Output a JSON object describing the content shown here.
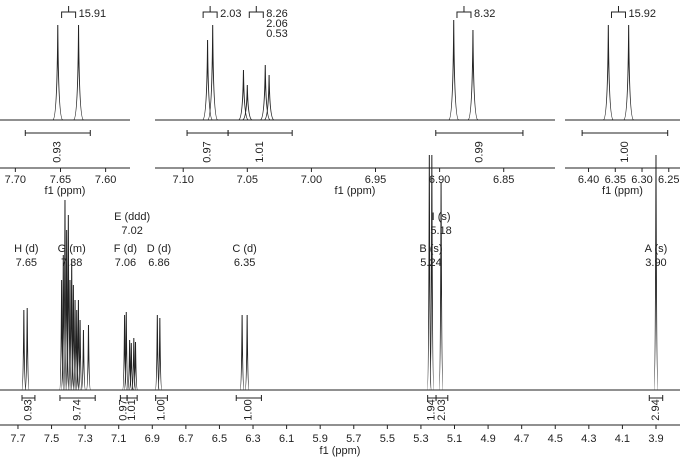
{
  "chart_data": [
    {
      "type": "spectrum",
      "xlabel": "f1 (ppm)",
      "xlim": [
        7.717,
        7.573
      ],
      "xticks": [
        {
          "value": 7.7,
          "label": "7.70"
        },
        7.65,
        {
          "value": 7.6,
          "label": "7.60"
        }
      ],
      "ylim": [
        0,
        100
      ],
      "peaks": {
        "x": [
          7.653,
          7.63
        ],
        "values": [
          95,
          95
        ]
      },
      "integrals": {
        "from": [
          7.689
        ],
        "to": [
          7.617
        ],
        "values": [
          0.93
        ],
        "value_labels": [
          "0.93"
        ]
      },
      "couplings": {
        "x": [
          7.641
        ],
        "values": [
          15.91
        ]
      }
    },
    {
      "type": "spectrum",
      "xlabel": "f1 (ppm)",
      "xlim": [
        7.122,
        6.81
      ],
      "xticks": [
        {
          "value": 7.1,
          "label": "7.10"
        },
        7.05,
        {
          "value": 7.0,
          "label": "7.00"
        },
        6.95,
        {
          "value": 6.9,
          "label": "6.90"
        },
        6.85
      ],
      "ylim": [
        0,
        100
      ],
      "peaks": {
        "x": [
          7.081,
          7.077,
          7.053,
          7.05,
          7.036,
          7.033,
          6.889,
          6.874
        ],
        "values": [
          80,
          95,
          50,
          35,
          55,
          45,
          100,
          90
        ]
      },
      "integrals": {
        "from": [
          7.097,
          7.065,
          6.903
        ],
        "to": [
          7.065,
          7.015,
          6.835
        ],
        "values": [
          0.97,
          1.01,
          0.99
        ],
        "value_labels": [
          "0.97",
          "1.01",
          "0.99"
        ]
      },
      "couplings": {
        "x": [
          7.079,
          7.043,
          7.043,
          7.043,
          6.881
        ],
        "values": [
          2.03,
          8.26,
          2.06,
          0.53,
          8.32
        ]
      }
    },
    {
      "type": "spectrum",
      "xlabel": "f1 (ppm)",
      "xlim": [
        6.444,
        6.229
      ],
      "xticks": [
        {
          "value": 6.4,
          "label": "6.40"
        },
        6.35,
        {
          "value": 6.3,
          "label": "6.30"
        },
        6.25
      ],
      "ylim": [
        0,
        100
      ],
      "peaks": {
        "x": [
          6.363,
          6.325
        ],
        "values": [
          95,
          95
        ]
      },
      "integrals": {
        "from": [
          6.412
        ],
        "to": [
          6.252
        ],
        "values": [
          1.0
        ],
        "value_labels": [
          "1.00"
        ]
      },
      "couplings": {
        "x": [
          6.344
        ],
        "values": [
          15.92
        ]
      }
    },
    {
      "type": "spectrum",
      "xlabel": "f1 (ppm)",
      "xlim": [
        7.807,
        3.757
      ],
      "xticks": [
        7.7,
        7.5,
        7.3,
        7.1,
        6.9,
        6.7,
        6.5,
        6.3,
        6.1,
        5.9,
        5.7,
        5.5,
        5.3,
        5.1,
        4.9,
        4.7,
        4.5,
        4.3,
        4.1,
        3.9
      ],
      "ylim": [
        0,
        240
      ],
      "peaks": {
        "x": [
          7.665,
          7.645,
          7.44,
          7.43,
          7.42,
          7.41,
          7.4,
          7.39,
          7.38,
          7.37,
          7.36,
          7.35,
          7.34,
          7.33,
          7.31,
          7.28,
          7.065,
          7.055,
          7.035,
          7.025,
          7.01,
          7.0,
          6.87,
          6.855,
          6.365,
          6.335,
          5.25,
          5.235,
          5.18,
          3.9
        ],
        "values": [
          80,
          82,
          110,
          135,
          190,
          160,
          175,
          110,
          130,
          105,
          90,
          80,
          90,
          70,
          60,
          65,
          75,
          78,
          50,
          47,
          52,
          48,
          75,
          72,
          75,
          75,
          235,
          235,
          208,
          235
        ]
      },
      "integrals": {
        "from": [
          7.676,
          7.45,
          7.09,
          7.05,
          6.88,
          6.4,
          5.26,
          5.21,
          3.94
        ],
        "to": [
          7.599,
          7.24,
          7.05,
          6.99,
          6.81,
          6.25,
          5.21,
          5.14,
          3.86
        ],
        "values": [
          0.93,
          9.74,
          0.97,
          1.01,
          1.0,
          1.0,
          1.94,
          2.03,
          2.94
        ],
        "value_labels": [
          "0.93",
          "9.74",
          "0.97",
          "1.01",
          "1.00",
          "1.00",
          "1.94",
          "2.03",
          "2.94"
        ]
      },
      "annotations": {
        "names": [
          "H (d)",
          "G (m)",
          "E (ddd)",
          "F (d)",
          "D (d)",
          "C (d)",
          "I (s)",
          "B (s)",
          "A (s)"
        ],
        "values": [
          7.65,
          7.38,
          7.02,
          7.06,
          6.86,
          6.35,
          5.18,
          5.24,
          3.9
        ],
        "value_labels": [
          "7.65",
          "7.38",
          "7.02",
          "7.06",
          "6.86",
          "6.35",
          "5.18",
          "5.24",
          "3.90"
        ]
      }
    }
  ]
}
